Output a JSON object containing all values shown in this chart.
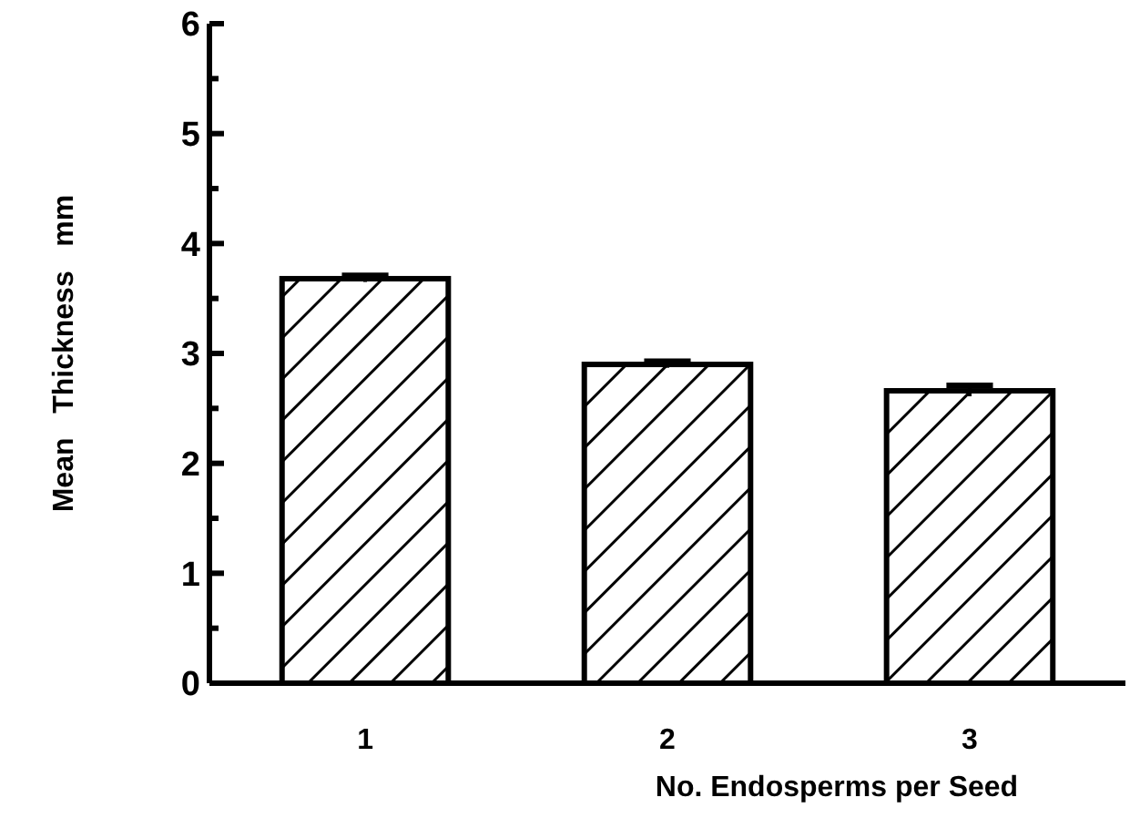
{
  "chart_data": {
    "type": "bar",
    "xlabel": "No. Endosperms per Seed",
    "ylabel": "Mean   Thickness   mm",
    "categories": [
      "1",
      "2",
      "3"
    ],
    "values": [
      3.68,
      2.9,
      2.66
    ],
    "errors": [
      0.03,
      0.03,
      0.05
    ],
    "color": "#000000",
    "ylim": [
      0,
      6
    ],
    "yticks": [
      0,
      {
        "value": 0.5,
        "label": null
      },
      1,
      {
        "value": 1.5,
        "label": null
      },
      2,
      {
        "value": 2.5,
        "label": null
      },
      3,
      {
        "value": 3.5,
        "label": null
      },
      4,
      {
        "value": 4.5,
        "label": null
      },
      5,
      {
        "value": 5.5,
        "label": null
      },
      6
    ],
    "grid": false
  }
}
